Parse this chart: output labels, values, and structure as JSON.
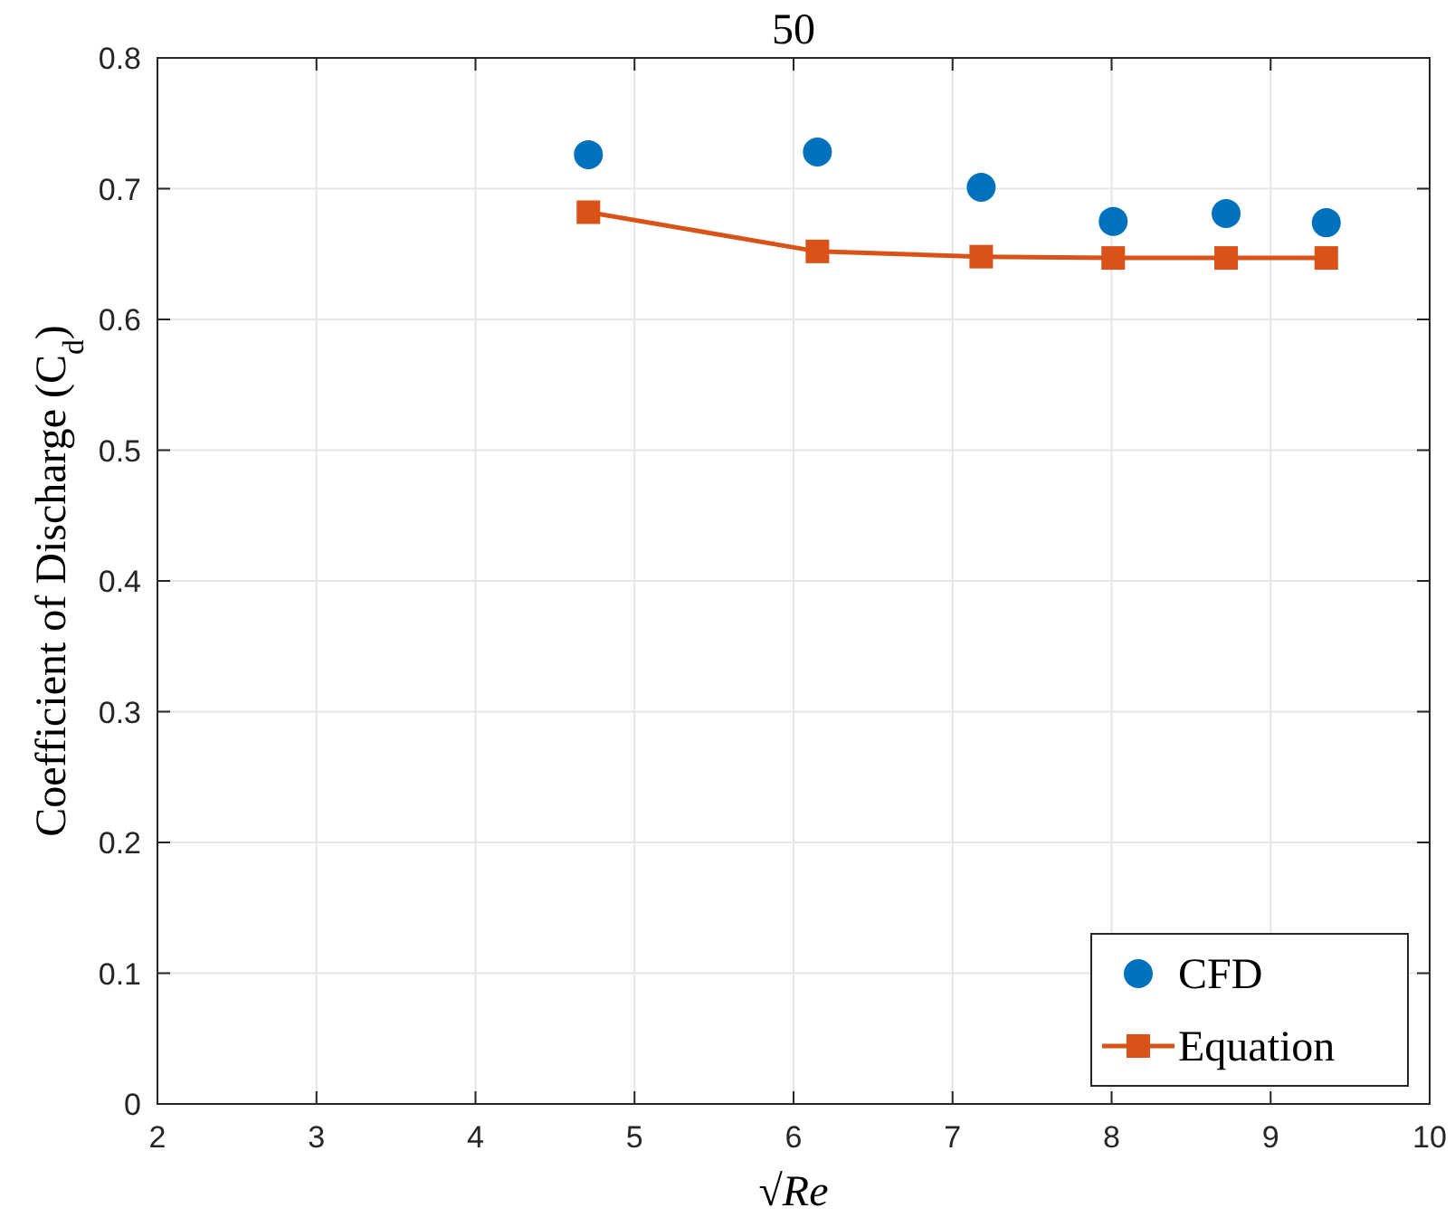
{
  "chart_data": {
    "type": "line",
    "title": "50",
    "xlabel": "√Re",
    "ylabel": "Coefficient of Discharge (C$_{d}$)",
    "xlim": [
      2,
      10
    ],
    "xticks": [
      2,
      3,
      4,
      5,
      6,
      7,
      8,
      9,
      10
    ],
    "ylim": [
      0,
      0.8
    ],
    "yticks": [
      0,
      0.1,
      0.2,
      0.3,
      0.4,
      0.5,
      0.6,
      0.7,
      0.8
    ],
    "grid": true,
    "legend": "bottom right",
    "series": [
      {
        "name": "CFD",
        "type": "scatter",
        "marker": "circle",
        "color": "#0072bd",
        "x": [
          4.71,
          6.15,
          7.18,
          8.01,
          8.72,
          9.35
        ],
        "values": [
          0.726,
          0.728,
          0.701,
          0.675,
          0.681,
          0.674
        ]
      },
      {
        "name": "Equation",
        "marker": "square",
        "color": "#d95319",
        "x": [
          4.71,
          6.15,
          7.18,
          8.01,
          8.72,
          9.35
        ],
        "values": [
          0.682,
          0.652,
          0.648,
          0.647,
          0.647,
          0.647
        ]
      }
    ]
  }
}
